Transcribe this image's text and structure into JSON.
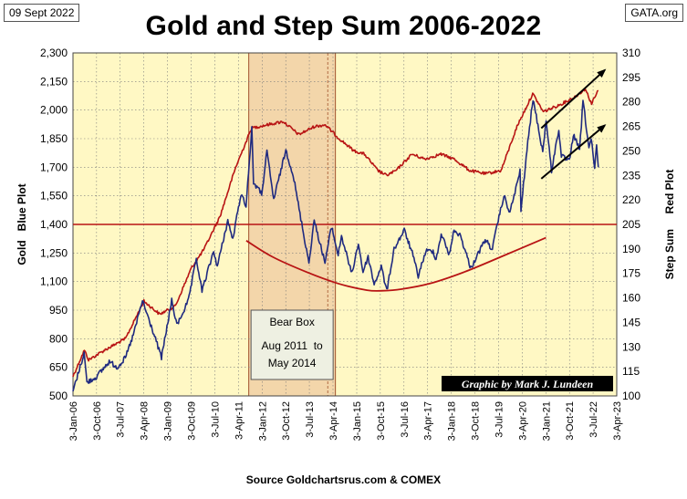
{
  "header": {
    "date": "09 Sept 2022",
    "source_site": "GATA.org",
    "title": "Gold and Step Sum 2006-2022"
  },
  "footer": {
    "source": "Source Goldchartsrus.com  & COMEX"
  },
  "colors": {
    "plot_background": "#fff8c4",
    "bear_box_fill": "#f3d6aa",
    "bear_box_line": "#a0522d",
    "gold": "#1f2a80",
    "step_sum": "#b81414",
    "reference_line": "#b81414",
    "cup_curve": "#b81414",
    "arrows": "#000000",
    "grid": "#7a7a7a"
  },
  "chart_data": {
    "type": "line",
    "title": "Gold and Step Sum 2006-2022",
    "xlabel": "",
    "ylabel_left": "Gold   Blue Plot",
    "ylabel_right": "Step Sum     Red Plot",
    "x_range": [
      "2006-01-03",
      "2023-04-03"
    ],
    "x_ticks": [
      "3-Jan-06",
      "3-Oct-06",
      "3-Jul-07",
      "3-Apr-08",
      "3-Jan-09",
      "3-Oct-09",
      "3-Jul-10",
      "3-Apr-11",
      "3-Jan-12",
      "3-Oct-12",
      "3-Jul-13",
      "3-Apr-14",
      "3-Jan-15",
      "3-Oct-15",
      "3-Jul-16",
      "3-Apr-17",
      "3-Jan-18",
      "3-Oct-18",
      "3-Jul-19",
      "3-Apr-20",
      "3-Jan-21",
      "3-Oct-21",
      "3-Jul-22",
      "3-Apr-23"
    ],
    "ylim_left": [
      500,
      2300
    ],
    "yticks_left": [
      "500",
      "650",
      "800",
      "950",
      "1,100",
      "1,250",
      "1,400",
      "1,550",
      "1,700",
      "1,850",
      "2,000",
      "2,150",
      "2,300"
    ],
    "ylim_right": [
      100,
      310
    ],
    "yticks_right": [
      "100",
      "115",
      "130",
      "145",
      "160",
      "175",
      "190",
      "205",
      "220",
      "235",
      "250",
      "265",
      "280",
      "295",
      "310"
    ],
    "grid": true,
    "series": [
      {
        "axis": "left",
        "x": [
          "2006-01-03",
          "2006-05-12",
          "2006-06-14",
          "2006-10-03",
          "2007-02-27",
          "2007-06-01",
          "2007-09-03",
          "2007-12-03",
          "2008-03-17",
          "2008-08-15",
          "2008-10-24",
          "2009-02-20",
          "2009-04-20",
          "2009-09-01",
          "2009-12-02",
          "2010-02-05",
          "2010-06-21",
          "2010-08-02",
          "2010-12-01",
          "2011-01-28",
          "2011-05-02",
          "2011-07-01",
          "2011-09-06",
          "2011-09-26",
          "2011-12-29",
          "2012-02-28",
          "2012-05-16",
          "2012-10-04",
          "2012-12-27",
          "2013-04-15",
          "2013-06-28",
          "2013-08-28",
          "2013-12-31",
          "2014-03-17",
          "2014-06-02",
          "2014-07-10",
          "2014-11-06",
          "2015-01-22",
          "2015-03-17",
          "2015-05-15",
          "2015-07-24",
          "2015-10-14",
          "2015-12-17",
          "2016-03-10",
          "2016-07-06",
          "2016-10-07",
          "2016-12-15",
          "2017-03-14",
          "2017-06-06",
          "2017-07-10",
          "2017-09-08",
          "2017-12-12",
          "2018-01-25",
          "2018-04-11",
          "2018-08-16",
          "2019-01-30",
          "2019-04-23",
          "2019-06-20",
          "2019-09-04",
          "2019-11-12",
          "2020-03-09",
          "2020-03-19",
          "2020-05-18",
          "2020-08-06",
          "2020-11-27",
          "2021-01-05",
          "2021-03-08",
          "2021-06-01",
          "2021-06-30",
          "2021-09-30",
          "2021-11-16",
          "2022-01-28",
          "2022-03-08",
          "2022-05-16",
          "2022-06-10",
          "2022-07-21",
          "2022-08-12",
          "2022-09-01"
        ],
        "y": [
          525,
          725,
          570,
          600,
          680,
          650,
          700,
          820,
          1000,
          800,
          700,
          1000,
          870,
          1000,
          1220,
          1050,
          1260,
          1180,
          1420,
          1320,
          1560,
          1500,
          1900,
          1620,
          1560,
          1780,
          1530,
          1790,
          1660,
          1380,
          1200,
          1420,
          1200,
          1390,
          1240,
          1340,
          1140,
          1300,
          1150,
          1230,
          1085,
          1180,
          1050,
          1270,
          1370,
          1250,
          1130,
          1260,
          1260,
          1215,
          1350,
          1240,
          1360,
          1350,
          1170,
          1320,
          1270,
          1400,
          1550,
          1460,
          1680,
          1470,
          1750,
          2060,
          1780,
          1950,
          1680,
          1900,
          1760,
          1730,
          1870,
          1790,
          2050,
          1800,
          1850,
          1690,
          1810,
          1700
        ]
      },
      {
        "axis": "right",
        "x": [
          "2006-01-03",
          "2006-05-15",
          "2006-07-03",
          "2007-01-03",
          "2007-09-03",
          "2008-04-03",
          "2008-10-03",
          "2009-04-03",
          "2009-10-03",
          "2010-03-03",
          "2010-09-03",
          "2011-03-03",
          "2011-09-03",
          "2012-03-03",
          "2012-09-03",
          "2013-03-03",
          "2013-09-03",
          "2014-01-03",
          "2014-06-03",
          "2014-12-03",
          "2015-04-03",
          "2015-09-03",
          "2015-12-15",
          "2016-04-03",
          "2016-10-03",
          "2017-03-03",
          "2017-09-03",
          "2018-02-03",
          "2018-08-03",
          "2019-02-03",
          "2019-08-03",
          "2020-02-03",
          "2020-08-03",
          "2020-12-03",
          "2021-06-03",
          "2021-12-03",
          "2022-04-03",
          "2022-06-15",
          "2022-09-01"
        ],
        "y": [
          112,
          128,
          122,
          128,
          135,
          158,
          150,
          155,
          178,
          190,
          210,
          240,
          264,
          266,
          268,
          260,
          265,
          266,
          258,
          250,
          248,
          238,
          235,
          238,
          248,
          245,
          248,
          245,
          238,
          236,
          238,
          265,
          285,
          274,
          278,
          283,
          288,
          279,
          287
        ]
      }
    ],
    "reference_line": {
      "axis": "left",
      "value": 1400
    },
    "cup_curve": {
      "axis": "left",
      "x": [
        "2011-07-03",
        "2012-05-01",
        "2013-06-01",
        "2014-06-01",
        "2015-05-01",
        "2015-11-01",
        "2016-06-01",
        "2017-05-01",
        "2018-06-01",
        "2019-08-01",
        "2021-01-03"
      ],
      "y": [
        1315,
        1230,
        1150,
        1090,
        1055,
        1052,
        1060,
        1090,
        1150,
        1230,
        1330
      ]
    },
    "arrows": [
      {
        "axis": "left",
        "from": {
          "x": "2020-11-10",
          "y": 1905
        },
        "to": {
          "x": "2022-11-15",
          "y": 2210
        }
      },
      {
        "axis": "left",
        "from": {
          "x": "2020-11-10",
          "y": 1640
        },
        "to": {
          "x": "2022-11-15",
          "y": 1920
        }
      }
    ],
    "bear_box": {
      "start": "2011-08-01",
      "end": "2014-05-01",
      "divider": "2014-02-01",
      "label_lines": [
        "Bear Box",
        "Aug 2011  to",
        "May 2014"
      ]
    },
    "credit": "Graphic by Mark J. Lundeen"
  }
}
